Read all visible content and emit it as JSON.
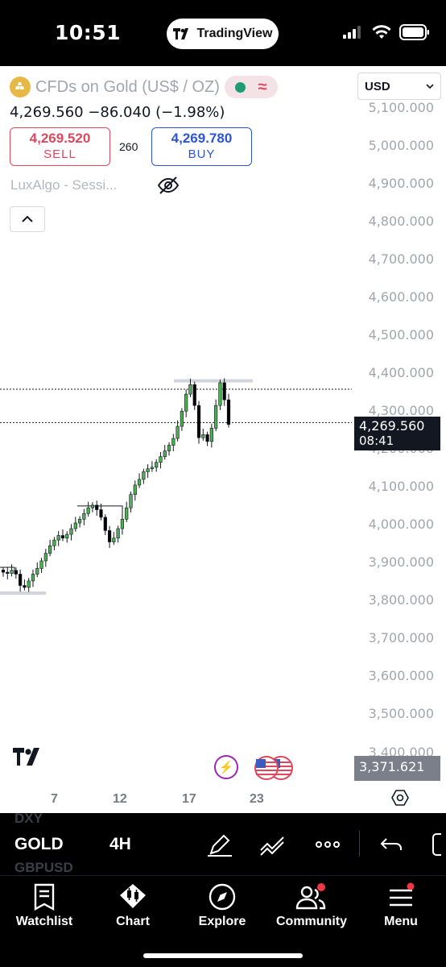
{
  "status_bar": {
    "time": "10:51",
    "app_pill": "TradingView"
  },
  "header": {
    "symbol_title": "CFDs on Gold (US$ / OZ)",
    "currency": "USD",
    "last_line": "4,269.560  −86.040 (−1.98%)",
    "sell": {
      "price": "4,269.520",
      "label": "SELL"
    },
    "buy": {
      "price": "4,269.780",
      "label": "BUY"
    },
    "spread": "260",
    "indicator": "LuxAlgo - Sessi..."
  },
  "chart_data": {
    "type": "candlestick",
    "y_tick_labels": [
      "5,100.000",
      "5,000.000",
      "4,900.000",
      "4,800.000",
      "4,700.000",
      "4,600.000",
      "4,500.000",
      "4,400.000",
      "4,300.000",
      "4,200.000",
      "4,100.000",
      "4,000.000",
      "3,900.000",
      "3,800.000",
      "3,700.000",
      "3,600.000",
      "3,500.000",
      "3,400.000"
    ],
    "ylim": [
      3370,
      5100
    ],
    "x_tick_labels": [
      "7",
      "12",
      "17",
      "23"
    ],
    "current_price": "4,269.560",
    "countdown": "08:41",
    "low_marker": "3,371.621",
    "close_path": [
      3875,
      3872,
      3880,
      3870,
      3840,
      3835,
      3852,
      3870,
      3885,
      3905,
      3925,
      3945,
      3960,
      3972,
      3965,
      3975,
      3990,
      4005,
      4015,
      4030,
      4045,
      4052,
      4040,
      4020,
      3985,
      3955,
      3965,
      3990,
      4015,
      4045,
      4080,
      4105,
      4120,
      4140,
      4148,
      4152,
      4165,
      4180,
      4195,
      4210,
      4228,
      4260,
      4300,
      4345,
      4370,
      4315,
      4230,
      4238,
      4220,
      4255,
      4315,
      4375,
      4330,
      4265
    ],
    "levels": [
      4358,
      4270
    ],
    "grid": false
  },
  "toolbar": {
    "symbol": "GOLD",
    "interval": "4H",
    "faded_above": "DXY",
    "faded_below": "GBPUSD"
  },
  "nav": {
    "watchlist": "Watchlist",
    "chart": "Chart",
    "explore": "Explore",
    "community": "Community",
    "menu": "Menu"
  },
  "colors": {
    "sell": "#e0465c",
    "buy": "#2b55d9",
    "candle_up": "#4caf50",
    "candle_down": "#000000",
    "accent_red": "#f23645"
  }
}
